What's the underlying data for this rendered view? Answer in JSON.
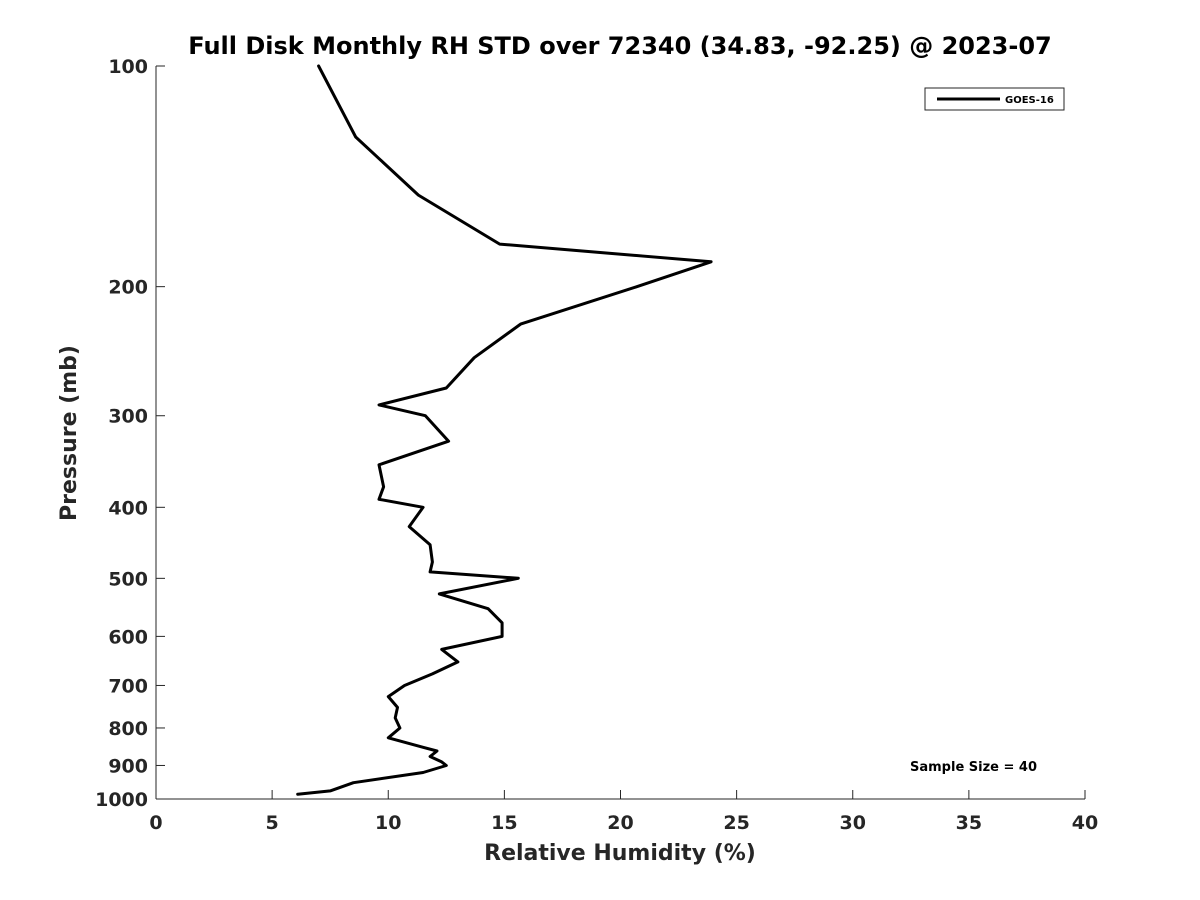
{
  "chart_data": {
    "type": "line",
    "title": "Full Disk Monthly RH STD over 72340 (34.83, -92.25) @ 2023-07",
    "xlabel": "Relative Humidity (%)",
    "ylabel": "Pressure (mb)",
    "xlim": [
      0,
      40
    ],
    "ylim": [
      100,
      1000
    ],
    "y_scale": "log",
    "y_reversed": true,
    "x_ticks": [
      0,
      5,
      10,
      15,
      20,
      25,
      30,
      35,
      40
    ],
    "y_ticks": [
      100,
      200,
      300,
      400,
      500,
      600,
      700,
      800,
      900,
      1000
    ],
    "grid": false,
    "legend_position": "top-right",
    "series": [
      {
        "name": "GOES-16",
        "color": "#000000",
        "points": [
          [
            7.0,
            100
          ],
          [
            8.6,
            125
          ],
          [
            11.3,
            150
          ],
          [
            14.8,
            175
          ],
          [
            23.9,
            185
          ],
          [
            20.7,
            200
          ],
          [
            15.7,
            225
          ],
          [
            13.7,
            250
          ],
          [
            12.5,
            275
          ],
          [
            9.6,
            290
          ],
          [
            11.6,
            300
          ],
          [
            12.6,
            325
          ],
          [
            9.6,
            350
          ],
          [
            9.8,
            375
          ],
          [
            9.6,
            390
          ],
          [
            11.5,
            400
          ],
          [
            10.9,
            425
          ],
          [
            11.8,
            450
          ],
          [
            11.9,
            475
          ],
          [
            11.8,
            490
          ],
          [
            15.6,
            500
          ],
          [
            12.2,
            525
          ],
          [
            14.3,
            550
          ],
          [
            14.9,
            575
          ],
          [
            14.9,
            600
          ],
          [
            12.3,
            625
          ],
          [
            13.0,
            650
          ],
          [
            11.9,
            675
          ],
          [
            10.7,
            700
          ],
          [
            10.0,
            725
          ],
          [
            10.4,
            750
          ],
          [
            10.3,
            775
          ],
          [
            10.5,
            800
          ],
          [
            10.0,
            825
          ],
          [
            11.5,
            850
          ],
          [
            12.1,
            860
          ],
          [
            11.8,
            875
          ],
          [
            12.3,
            890
          ],
          [
            12.5,
            900
          ],
          [
            11.5,
            920
          ],
          [
            8.5,
            950
          ],
          [
            7.5,
            975
          ],
          [
            6.1,
            985
          ]
        ]
      }
    ],
    "annotation": "Sample Size = 40"
  }
}
